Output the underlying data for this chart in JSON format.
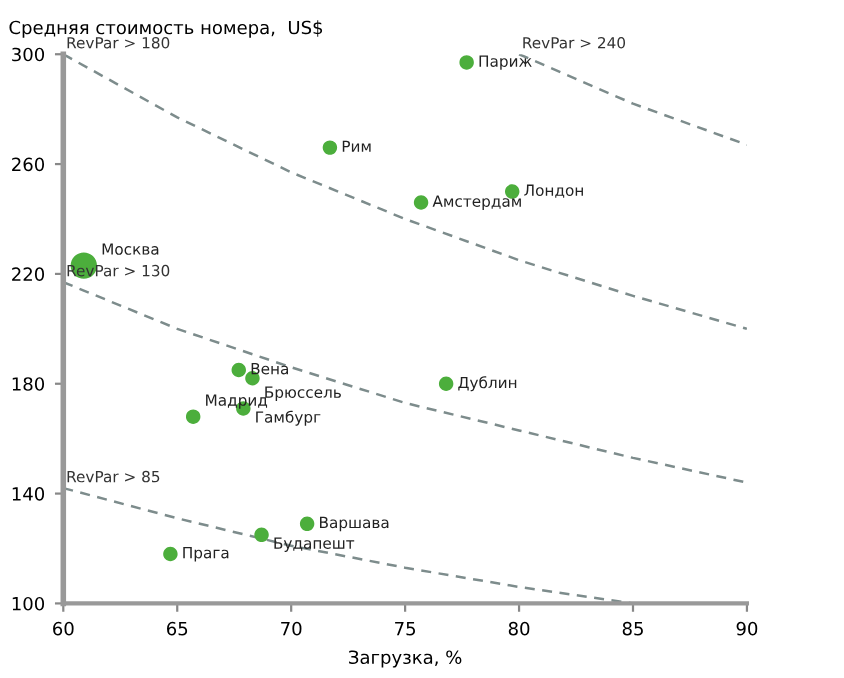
{
  "chart_data": {
    "type": "bubble",
    "ylabel": "Средняя стоимость номера,  US$",
    "xlabel": "Загрузка, %",
    "xlim": [
      60,
      90
    ],
    "xticks": [
      60,
      65,
      70,
      75,
      80,
      85,
      90
    ],
    "ylim": [
      100,
      300
    ],
    "yticks": [
      100,
      140,
      180,
      220,
      260,
      300
    ],
    "grid": false,
    "legend": false,
    "series": [
      {
        "type": "bubble",
        "color": "#4cae3c",
        "x": [
          77.7,
          71.7,
          75.7,
          79.7,
          60.9,
          67.7,
          68.3,
          76.8,
          67.9,
          65.7,
          70.7,
          68.7,
          64.7
        ],
        "values": [
          297,
          266,
          246,
          250,
          223,
          185,
          182,
          180,
          171,
          168,
          129,
          125,
          118
        ],
        "sizes": [
          0.3,
          0.3,
          0.3,
          0.3,
          1,
          0.3,
          0.3,
          0.3,
          0.3,
          0.3,
          0.3,
          0.3,
          0.3
        ]
      },
      {
        "type": "line",
        "name": "RevPar > 180",
        "color": "#7d8c8c",
        "line_style": "dashed",
        "x": [
          60,
          65,
          70,
          75,
          80,
          85,
          90
        ],
        "values": [
          300,
          277,
          257,
          240,
          225,
          212,
          200
        ]
      },
      {
        "type": "line",
        "name": "RevPar > 240",
        "color": "#7d8c8c",
        "line_style": "dashed",
        "x": [
          80,
          85,
          90
        ],
        "values": [
          300,
          282,
          267
        ]
      },
      {
        "type": "line",
        "name": "RevPar > 130",
        "color": "#7d8c8c",
        "line_style": "dashed",
        "x": [
          60,
          65,
          70,
          75,
          80,
          85,
          90
        ],
        "values": [
          217,
          200,
          186,
          173,
          163,
          153,
          144
        ]
      },
      {
        "type": "line",
        "name": "RevPar > 85",
        "color": "#7d8c8c",
        "line_style": "dashed",
        "x": [
          60,
          65,
          70,
          75,
          80,
          85
        ],
        "values": [
          142,
          131,
          121,
          113,
          106,
          100
        ]
      }
    ],
    "annotations": [
      {
        "text": "Париж",
        "x": 77.7,
        "y": 297
      },
      {
        "text": "Рим",
        "x": 71.7,
        "y": 266
      },
      {
        "text": "Амстердам",
        "x": 75.7,
        "y": 246
      },
      {
        "text": "Лондон",
        "x": 79.7,
        "y": 250
      },
      {
        "text": "Москва",
        "x": 60.9,
        "y": 223
      },
      {
        "text": "Вена",
        "x": 67.7,
        "y": 185
      },
      {
        "text": "Брюссель",
        "x": 68.3,
        "y": 182
      },
      {
        "text": "Дублин",
        "x": 76.8,
        "y": 180
      },
      {
        "text": "Гамбург",
        "x": 67.9,
        "y": 171
      },
      {
        "text": "Мадрид",
        "x": 65.7,
        "y": 168
      },
      {
        "text": "Варшава",
        "x": 70.7,
        "y": 129
      },
      {
        "text": "Будапешт",
        "x": 68.7,
        "y": 125
      },
      {
        "text": "Прага",
        "x": 64.7,
        "y": 118
      }
    ]
  }
}
